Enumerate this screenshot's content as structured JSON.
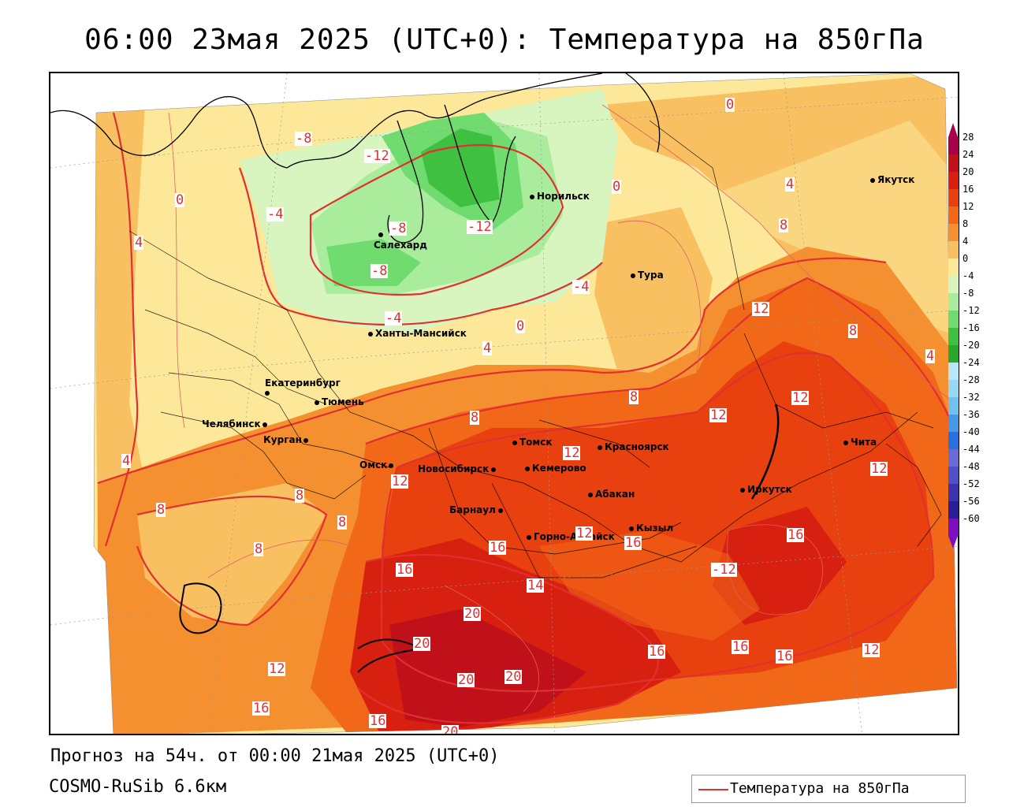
{
  "title": "06:00 23мая 2025 (UTC+0): Температура на 850гПа",
  "footer": {
    "forecast": "Прогноз на 54ч. от 00:00 21мая 2025 (UTC+0)",
    "model": "COSMO-RuSib 6.6км"
  },
  "legend": {
    "label": "Температура на 850гПа",
    "color": "#e03030"
  },
  "colorbar": {
    "ticks": [
      "28",
      "24",
      "20",
      "16",
      "12",
      "8",
      "4",
      "0",
      "-4",
      "-8",
      "-12",
      "-16",
      "-20",
      "-24",
      "-28",
      "-32",
      "-36",
      "-40",
      "-44",
      "-48",
      "-52",
      "-56",
      "-60"
    ],
    "colors": [
      "#a8004a",
      "#c0101a",
      "#d82010",
      "#e8400e",
      "#f06818",
      "#f59030",
      "#f8c060",
      "#fde89a",
      "#d8f5c0",
      "#a8ec9c",
      "#70dc70",
      "#40c040",
      "#28a828",
      "#b8e8f8",
      "#98d8f4",
      "#70c0f0",
      "#4898e8",
      "#2870e0",
      "#6a6ad8",
      "#5050c8",
      "#3a34b0",
      "#281e98",
      "#7a10c0"
    ]
  },
  "cities": [
    {
      "name": "Якутск"
    },
    {
      "name": "Норильск"
    },
    {
      "name": "Салехард"
    },
    {
      "name": "Тура"
    },
    {
      "name": "Ханты-Мансийск"
    },
    {
      "name": "Екатеринбург"
    },
    {
      "name": "Тюмень"
    },
    {
      "name": "Челябинск"
    },
    {
      "name": "Курган"
    },
    {
      "name": "Омск"
    },
    {
      "name": "Томск"
    },
    {
      "name": "Красноярск"
    },
    {
      "name": "Новосибирск"
    },
    {
      "name": "Кемерово"
    },
    {
      "name": "Абакан"
    },
    {
      "name": "Барнаул"
    },
    {
      "name": "Горно-Алтайск"
    },
    {
      "name": "Кызыл"
    },
    {
      "name": "Иркутск"
    },
    {
      "name": "Чита"
    }
  ],
  "isolines": [
    "0",
    "-8",
    "-12",
    "0",
    "4",
    "-4",
    "-8",
    "-12",
    "8",
    "4",
    "-8",
    "-4",
    "0",
    "-4",
    "4",
    "12",
    "8",
    "4",
    "0",
    "8",
    "8",
    "12",
    "12",
    "12",
    "12",
    "8",
    "8",
    "8",
    "4",
    "8",
    "16",
    "16",
    "16",
    "12",
    "16",
    "14",
    "20",
    "20",
    "20",
    "20",
    "16",
    "16",
    "16",
    "12",
    "12",
    "16",
    "16",
    "20",
    "12",
    "-12"
  ]
}
